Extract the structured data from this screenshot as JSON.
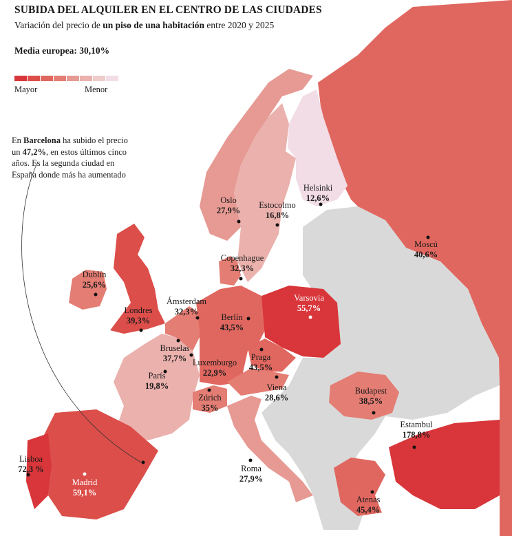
{
  "title": "SUBIDA DEL ALQUILER EN EL CENTRO  DE LAS CIUDADES",
  "subtitle_pre": "Variación del precio de ",
  "subtitle_bold": "un piso de una habitación",
  "subtitle_post": " entre 2020 y 2025",
  "average": "Media europea: 30,10%",
  "legend": {
    "high": "Mayor",
    "low": "Menor",
    "colors": [
      "#d8363a",
      "#dc4e4a",
      "#e0675f",
      "#e47d73",
      "#e69a93",
      "#eab1ad",
      "#eeccca",
      "#f2dde6"
    ]
  },
  "note": {
    "t1": "En ",
    "city": "Barcelona",
    "t2": " ha subido el precio un ",
    "pct": "47,2%",
    "t3": ", en estos últimos cinco años. Es la segunda ciudad en España donde más ha aumentado"
  },
  "cities": [
    {
      "id": "oslo",
      "name": "Oslo",
      "value": "27,9%"
    },
    {
      "id": "estocolmo",
      "name": "Estocolmo",
      "value": "16,8%"
    },
    {
      "id": "helsinki",
      "name": "Helsinki",
      "value": "12,6%"
    },
    {
      "id": "moscu",
      "name": "Moscú",
      "value": "40,6%"
    },
    {
      "id": "copenhague",
      "name": "Copenhague",
      "value": "32,3%"
    },
    {
      "id": "dublin",
      "name": "Dublín",
      "value": "25,6%"
    },
    {
      "id": "amsterdam",
      "name": "Ámsterdam",
      "value": "32,3%"
    },
    {
      "id": "varsovia",
      "name": "Varsovia",
      "value": "55,7%"
    },
    {
      "id": "berlin",
      "name": "Berlín",
      "value": "43,5%"
    },
    {
      "id": "londres",
      "name": "Londres",
      "value": "39,3%"
    },
    {
      "id": "bruselas",
      "name": "Bruselas",
      "value": "37,7%"
    },
    {
      "id": "luxemburgo",
      "name": "Luxemburgo",
      "value": "22,9%"
    },
    {
      "id": "praga",
      "name": "Praga",
      "value": "43,5%"
    },
    {
      "id": "paris",
      "name": "París",
      "value": "19,8%"
    },
    {
      "id": "viena",
      "name": "Viena",
      "value": "28,6%"
    },
    {
      "id": "budapest",
      "name": "Budapest",
      "value": "38,5%"
    },
    {
      "id": "zurich",
      "name": "Zúrich",
      "value": "35%"
    },
    {
      "id": "estambul",
      "name": "Estambul",
      "value": "178,8%"
    },
    {
      "id": "lisboa",
      "name": "Lisboa",
      "value": "72,3 %"
    },
    {
      "id": "roma",
      "name": "Roma",
      "value": "27,9%"
    },
    {
      "id": "madrid",
      "name": "Madrid",
      "value": "59,1%"
    },
    {
      "id": "atenas",
      "name": "Atenas",
      "value": "45,4%"
    }
  ]
}
